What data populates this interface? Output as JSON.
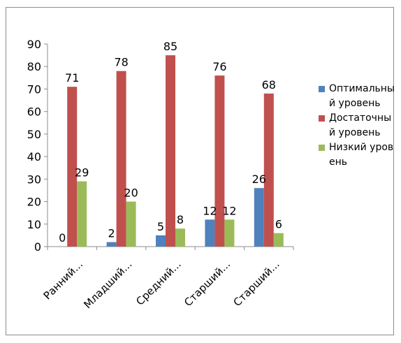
{
  "chart_data": {
    "type": "bar",
    "categories": [
      "Ранний...",
      "Младший...",
      "Средний...",
      "Старший...",
      "Старший..."
    ],
    "series": [
      {
        "name": "Оптимальный уровень",
        "color": "#4f81bd",
        "values": [
          0,
          2,
          5,
          12,
          26
        ]
      },
      {
        "name": "Достаточный уровень",
        "color": "#c0504d",
        "values": [
          71,
          78,
          85,
          76,
          68
        ]
      },
      {
        "name": "Низкий уровень",
        "color": "#9bbb59",
        "values": [
          29,
          20,
          8,
          12,
          6
        ]
      }
    ],
    "ylim": [
      0,
      90
    ],
    "yticks": [
      0,
      10,
      20,
      30,
      40,
      50,
      60,
      70,
      80,
      90
    ],
    "grid": false,
    "legend_position": "right",
    "title": "",
    "xlabel": "",
    "ylabel": ""
  }
}
